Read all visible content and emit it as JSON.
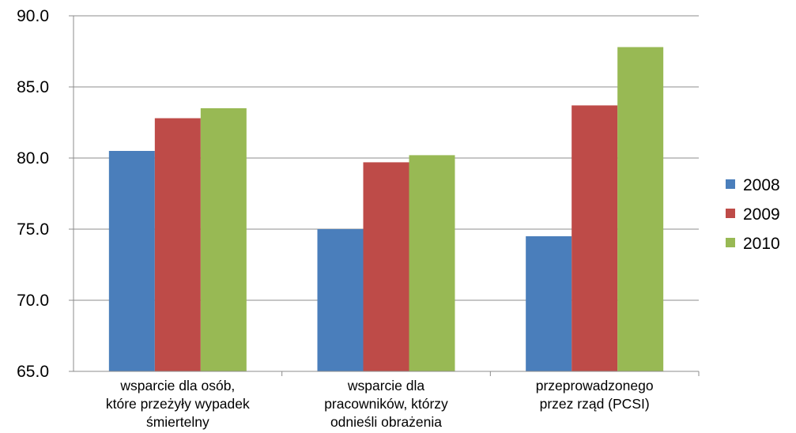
{
  "chart_data": {
    "type": "bar",
    "title": "",
    "xlabel": "",
    "ylabel": "",
    "categories": [
      [
        "wsparcie dla osób,",
        "które przeżyły wypadek",
        "śmiertelny"
      ],
      [
        "wsparcie dla",
        "pracowników, którzy",
        "odnieśli obrażenia"
      ],
      [
        "przeprowadzonego",
        "przez rząd (PCSI)"
      ]
    ],
    "series": [
      {
        "name": "2008",
        "color": "#4a7ebb",
        "values": [
          80.5,
          75.0,
          74.5
        ]
      },
      {
        "name": "2009",
        "color": "#be4b48",
        "values": [
          82.8,
          79.7,
          83.7
        ]
      },
      {
        "name": "2010",
        "color": "#98b954",
        "values": [
          83.5,
          80.2,
          87.8
        ]
      }
    ],
    "ylim": [
      65.0,
      90.0
    ],
    "yticks": [
      "65.0",
      "70.0",
      "75.0",
      "80.0",
      "85.0",
      "90.0"
    ],
    "grid": true,
    "legend_position": "right"
  }
}
